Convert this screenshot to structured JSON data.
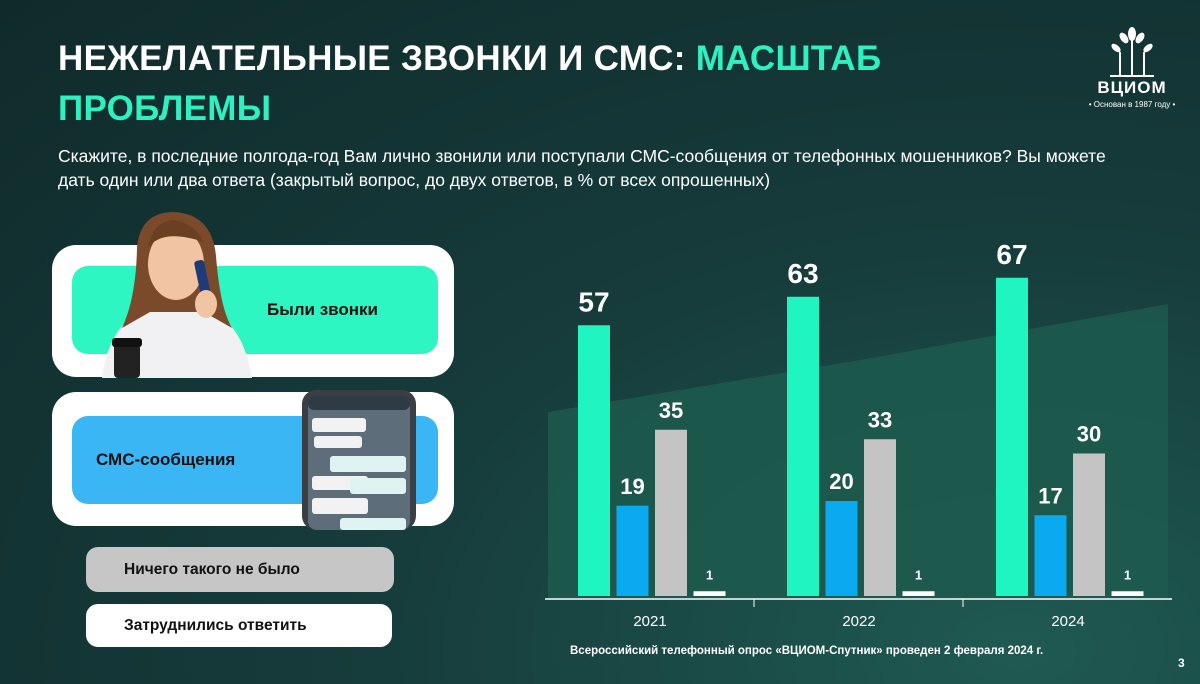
{
  "header": {
    "title_main": "НЕЖЕЛАТЕЛЬНЫЕ ЗВОНКИ И СМС: ",
    "title_accent_1": "МАСШТАБ",
    "title_accent_2": "ПРОБЛЕМЫ",
    "question": "Скажите, в последние полгода-год Вам лично звонили или поступали СМС-сообщения от телефонных мошенников? Вы можете дать один или два ответа (закрытый вопрос, до двух ответов, в % от всех опрошенных)"
  },
  "logo": {
    "name": "ВЦИОМ",
    "tagline": "• Основан в 1987 году •"
  },
  "legend": {
    "calls": "Были звонки",
    "sms": "СМС-сообщения",
    "nothing": "Ничего такого не было",
    "hard": "Затруднились ответить"
  },
  "colors": {
    "calls": "#1ef5c0",
    "sms": "#0aaaf0",
    "nothing": "#c4c4c4",
    "hard": "#ffffff",
    "accent": "#2ef0c0"
  },
  "chart_data": {
    "type": "bar",
    "categories": [
      "2021",
      "2022",
      "2024"
    ],
    "series": [
      {
        "name": "Были звонки",
        "values": [
          57,
          63,
          67
        ]
      },
      {
        "name": "СМС-сообщения",
        "values": [
          19,
          20,
          17
        ]
      },
      {
        "name": "Ничего такого не было",
        "values": [
          35,
          33,
          30
        ]
      },
      {
        "name": "Затруднились ответить",
        "values": [
          1,
          1,
          1
        ]
      }
    ],
    "ylim": [
      0,
      70
    ]
  },
  "footnote": "Всероссийский телефонный опрос «ВЦИОМ-Спутник» проведен 2 февраля 2024 г.",
  "page_number": "3"
}
